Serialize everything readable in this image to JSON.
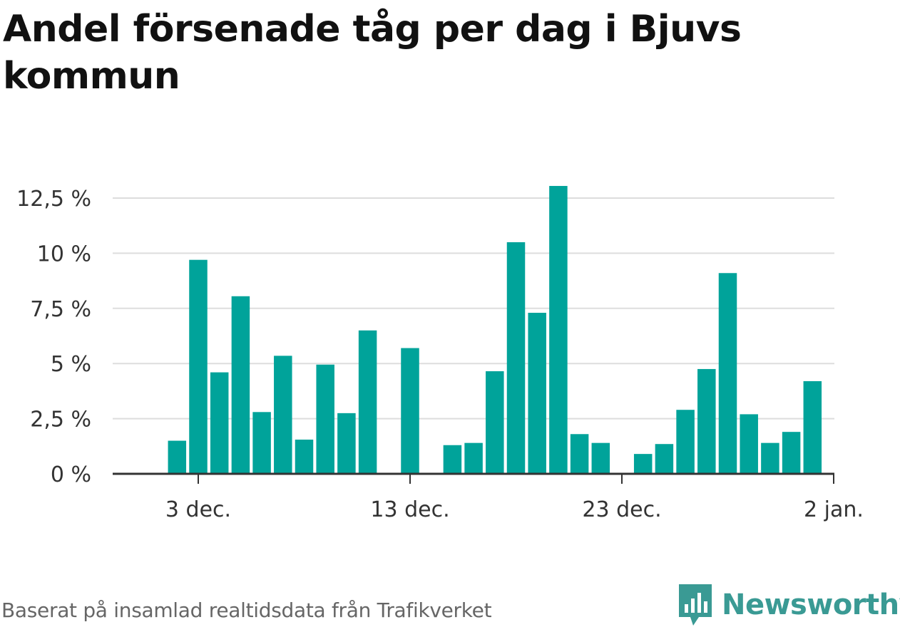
{
  "chart_data": {
    "type": "bar",
    "title": "Andel försenade tåg per dag i Bjuvs kommun",
    "xlabel": "",
    "ylabel": "",
    "ylim": [
      0,
      13
    ],
    "yticks": [
      {
        "value": 0,
        "label": "0 %"
      },
      {
        "value": 2.5,
        "label": "2,5 %"
      },
      {
        "value": 5,
        "label": "5 %"
      },
      {
        "value": 7.5,
        "label": "7,5 %"
      },
      {
        "value": 10,
        "label": "10 %"
      },
      {
        "value": 12.5,
        "label": "12,5 %"
      }
    ],
    "xticks": [
      {
        "date": "2021-12-03",
        "label": "3 dec."
      },
      {
        "date": "2021-12-13",
        "label": "13 dec."
      },
      {
        "date": "2021-12-23",
        "label": "23 dec."
      },
      {
        "date": "2022-01-02",
        "label": "2 jan."
      }
    ],
    "grid": true,
    "bar_color": "#00a39a",
    "dates": [
      "2021-12-02",
      "2021-12-03",
      "2021-12-04",
      "2021-12-05",
      "2021-12-06",
      "2021-12-07",
      "2021-12-08",
      "2021-12-09",
      "2021-12-10",
      "2021-12-11",
      "2021-12-12",
      "2021-12-13",
      "2021-12-14",
      "2021-12-15",
      "2021-12-16",
      "2021-12-17",
      "2021-12-18",
      "2021-12-19",
      "2021-12-20",
      "2021-12-21",
      "2021-12-22",
      "2021-12-23",
      "2021-12-24",
      "2021-12-25",
      "2021-12-26",
      "2021-12-27",
      "2021-12-28",
      "2021-12-29",
      "2021-12-30",
      "2021-12-31",
      "2022-01-01"
    ],
    "values": [
      1.5,
      9.7,
      4.6,
      8.05,
      2.8,
      5.35,
      1.55,
      4.95,
      2.75,
      6.5,
      0,
      5.7,
      0,
      1.3,
      1.4,
      4.65,
      10.5,
      7.3,
      13.05,
      1.8,
      1.4,
      0,
      0.9,
      1.35,
      2.9,
      4.75,
      9.1,
      2.7,
      1.4,
      1.9,
      4.2
    ]
  },
  "footer": {
    "source": "Baserat på insamlad realtidsdata från Trafikverket",
    "logo_text": "Newsworthy",
    "logo_icon": "bar-chart-speech-bubble-icon",
    "logo_color": "#3a9a94"
  }
}
